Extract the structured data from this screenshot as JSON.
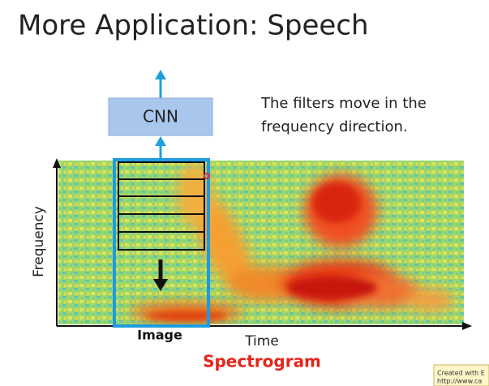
{
  "slide": {
    "title": "More Application: Speech",
    "cnn_label": "CNN",
    "note_lines": [
      "The filters move in the",
      "frequency direction."
    ],
    "y_axis_label": "Frequency",
    "x_axis_label": "Time",
    "image_label": "Image",
    "caption": "Spectrogram",
    "watermark_lines": [
      "Created with E",
      "http://www.ca"
    ]
  }
}
